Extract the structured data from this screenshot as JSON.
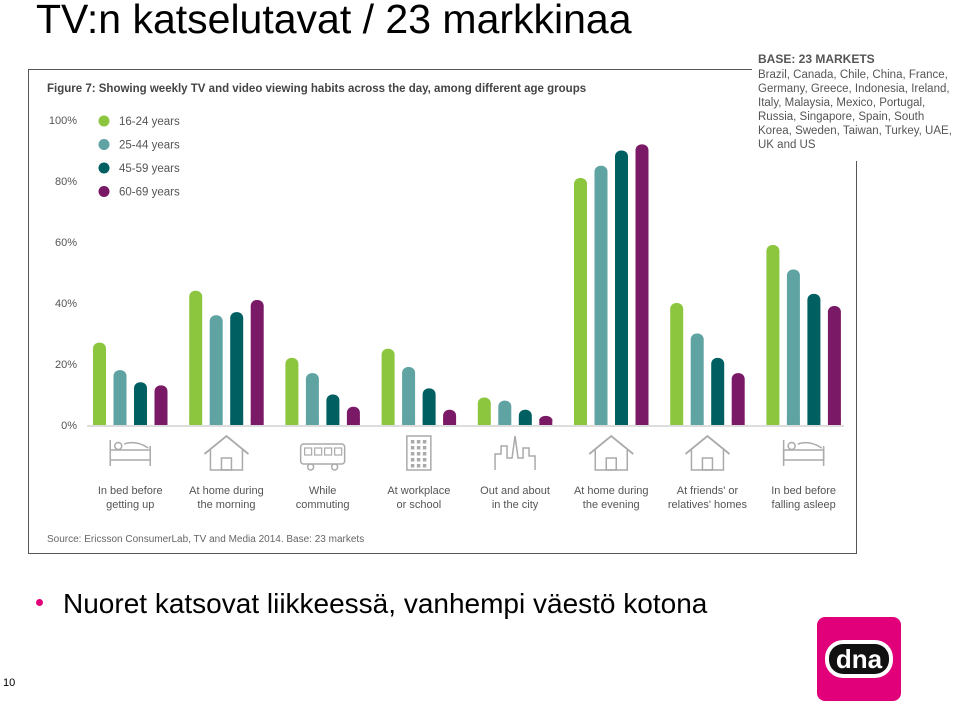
{
  "slide": {
    "title": "TV:n katselutavat / 23 markkinaa",
    "bullet": "Nuoret katsovat liikkeessä, vanhempi väestö kotona",
    "page_number": "10"
  },
  "base_box": {
    "title": "BASE: 23 MARKETS",
    "text": "Brazil, Canada, Chile, China, France, Germany, Greece, Indonesia, Ireland, Italy, Malaysia, Mexico, Portugal, Russia, Singapore, Spain, South Korea, Sweden, Taiwan, Turkey, UAE, UK and US"
  },
  "logo": {
    "text": "dna",
    "color": "#e2007a"
  },
  "chart_data": {
    "type": "bar",
    "title": "Figure 7: Showing weekly TV and video viewing habits across the day, among different age groups",
    "source": "Source: Ericsson ConsumerLab, TV and Media 2014. Base: 23 markets",
    "xlabel": "",
    "ylabel": "",
    "ylim": [
      0,
      100
    ],
    "y_ticks": [
      "0%",
      "20%",
      "40%",
      "60%",
      "80%",
      "100%"
    ],
    "grid": false,
    "legend_position": "top-left",
    "categories": [
      [
        "In bed before",
        "getting up"
      ],
      [
        "At home during",
        "the morning"
      ],
      [
        "While",
        "commuting"
      ],
      [
        "At workplace",
        "or school"
      ],
      [
        "Out and about",
        "in the city"
      ],
      [
        "At home during",
        "the evening"
      ],
      [
        "At friends' or",
        "relatives' homes"
      ],
      [
        "In bed before",
        "falling asleep"
      ]
    ],
    "category_icons": [
      "bed-icon",
      "house-icon",
      "bus-icon",
      "office-building-icon",
      "city-icon",
      "house-icon",
      "house-icon",
      "bed-icon"
    ],
    "series": [
      {
        "name": "16-24 years",
        "color": "#8cc63f",
        "values": [
          27,
          44,
          22,
          25,
          9,
          81,
          40,
          59
        ]
      },
      {
        "name": "25-44 years",
        "color": "#5fa3a3",
        "values": [
          18,
          36,
          17,
          19,
          8,
          85,
          30,
          51
        ]
      },
      {
        "name": "45-59 years",
        "color": "#005f61",
        "values": [
          14,
          37,
          10,
          12,
          5,
          90,
          22,
          43
        ]
      },
      {
        "name": "60-69 years",
        "color": "#7a1a66",
        "values": [
          13,
          41,
          6,
          5,
          3,
          92,
          17,
          39
        ]
      }
    ]
  }
}
